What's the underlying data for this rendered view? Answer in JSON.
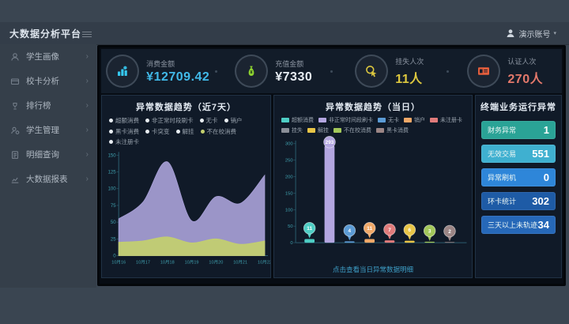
{
  "header": {
    "title": "大数据分析平台",
    "user_name": "演示账号",
    "caret": "▾"
  },
  "sidebar": {
    "items": [
      {
        "label": "学生画像",
        "icon": "student-portrait-icon"
      },
      {
        "label": "校卡分析",
        "icon": "card-analysis-icon"
      },
      {
        "label": "排行榜",
        "icon": "ranking-icon"
      },
      {
        "label": "学生管理",
        "icon": "student-manage-icon"
      },
      {
        "label": "明细查询",
        "icon": "detail-query-icon"
      },
      {
        "label": "大数据报表",
        "icon": "report-icon"
      }
    ]
  },
  "kpis": [
    {
      "label": "消费金额",
      "value": "¥12709.42",
      "icon": "consumption-icon",
      "icon_color": "#35c8f0",
      "value_color": "#41b9e8"
    },
    {
      "label": "充值金额",
      "value": "¥7330",
      "icon": "recharge-icon",
      "icon_color": "#8ed330",
      "value_color": "#e8eef4"
    },
    {
      "label": "挂失人次",
      "value": "11人",
      "icon": "card-loss-icon",
      "icon_color": "#ddc83f",
      "value_color": "#ddc83f"
    },
    {
      "label": "认证人次",
      "value": "270人",
      "icon": "auth-icon",
      "icon_color": "#e55e3c",
      "value_color": "#e4796b"
    }
  ],
  "panels": {
    "left": {
      "title": "异常数据趋势（近7天）",
      "legend": [
        {
          "label": "超额消费",
          "dot": "#e8edf2"
        },
        {
          "label": "非正常时段刷卡",
          "dot": "#e8edf2"
        },
        {
          "label": "无卡",
          "dot": "#e8edf2"
        },
        {
          "label": "销户",
          "dot": "#e8edf2"
        },
        {
          "label": "黑卡消费",
          "dot": "#e8edf2"
        },
        {
          "label": "卡突变",
          "dot": "#e8edf2"
        },
        {
          "label": "解挂",
          "dot": "#e8edf2"
        },
        {
          "label": "不在校消费",
          "dot": "#c3cf6e"
        },
        {
          "label": "未注册卡",
          "dot": "#e8edf2"
        }
      ]
    },
    "middle": {
      "title": "异常数据趋势（当日）",
      "legend": [
        {
          "label": "超额消费",
          "color": "#4ecdc4"
        },
        {
          "label": "非正常时间段刷卡",
          "color": "#b3a6e0"
        },
        {
          "label": "无卡",
          "color": "#5b9bd5"
        },
        {
          "label": "销户",
          "color": "#f0a868"
        },
        {
          "label": "未注册卡",
          "color": "#e07b7b"
        },
        {
          "label": "挂失",
          "color": "#8a8f98"
        },
        {
          "label": "解挂",
          "color": "#e8c547"
        },
        {
          "label": "不在校消费",
          "color": "#a3c85a"
        },
        {
          "label": "黑卡消费",
          "color": "#9b8585"
        }
      ],
      "footer_link": "点击查看当日异常数据明细"
    },
    "right": {
      "title": "终端业务运行异常",
      "stats": [
        {
          "label": "财务异常",
          "value": 1,
          "color": "#2aa396"
        },
        {
          "label": "无效交易",
          "value": 551,
          "color": "#3fb0d0"
        },
        {
          "label": "异常刷机",
          "value": 0,
          "color": "#2e86d9"
        },
        {
          "label": "环卡统计",
          "value": 302,
          "color": "#1e5ba6"
        },
        {
          "label": "三天以上未轨迹",
          "value": 34,
          "color": "#2668b8"
        }
      ]
    }
  },
  "chart_data": [
    {
      "type": "area",
      "title": "异常数据趋势（近7天）",
      "x": [
        "10月16",
        "10月17",
        "10月18",
        "10月19",
        "10月20",
        "10月21",
        "10月22"
      ],
      "series": [
        {
          "name": "非正常时段刷卡",
          "color": "#a79fd6",
          "values": [
            55,
            80,
            140,
            52,
            88,
            78,
            120
          ]
        },
        {
          "name": "不在校消费",
          "color": "#c3cf6e",
          "values": [
            20,
            22,
            28,
            19,
            25,
            17,
            22
          ]
        }
      ],
      "ylim": [
        0,
        150
      ],
      "ytick_step": 25,
      "grid": false,
      "legend_position": "top"
    },
    {
      "type": "bar",
      "title": "异常数据趋势（当日）",
      "categories": [
        "超额消费",
        "非正常时间段刷卡",
        "无卡",
        "销户",
        "未注册卡",
        "解挂",
        "不在校消费",
        "黑卡消费"
      ],
      "values": [
        11,
        293,
        4,
        11,
        7,
        6,
        3,
        2
      ],
      "colors": [
        "#4ecdc4",
        "#b3a6e0",
        "#5b9bd5",
        "#f0a868",
        "#e07b7b",
        "#e8c547",
        "#a3c85a",
        "#9b8585"
      ],
      "ylim": [
        0,
        300
      ],
      "ytick_step": 50,
      "grid": false
    }
  ]
}
